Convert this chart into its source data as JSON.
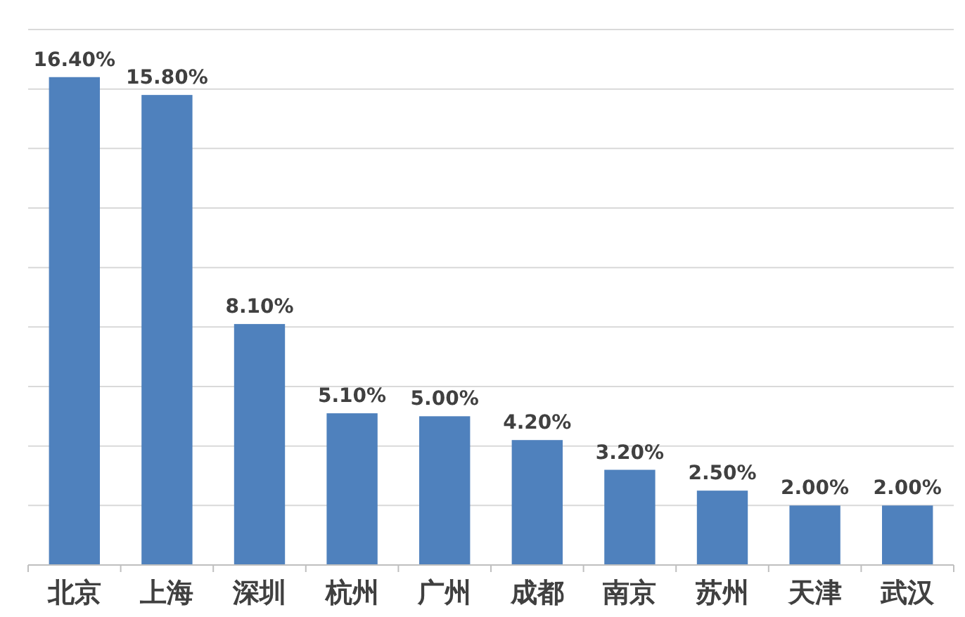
{
  "chart_data": {
    "type": "bar",
    "categories": [
      "北京",
      "上海",
      "深圳",
      "杭州",
      "广州",
      "成都",
      "南京",
      "苏州",
      "天津",
      "武汉"
    ],
    "values": [
      16.4,
      15.8,
      8.1,
      5.1,
      5.0,
      4.2,
      3.2,
      2.5,
      2.0,
      2.0
    ],
    "value_labels": [
      "16.40%",
      "15.80%",
      "8.10%",
      "5.10%",
      "5.00%",
      "4.20%",
      "3.20%",
      "2.50%",
      "2.00%",
      "2.00%"
    ],
    "color": "#4f81bd",
    "ylim": [
      0,
      18
    ],
    "yticks": [
      {
        "value": 0,
        "label": null
      },
      {
        "value": 2,
        "label": null
      },
      {
        "value": 4,
        "label": null
      },
      {
        "value": 6,
        "label": null
      },
      {
        "value": 8,
        "label": null
      },
      {
        "value": 10,
        "label": null
      },
      {
        "value": 12,
        "label": null
      },
      {
        "value": 14,
        "label": null
      },
      {
        "value": 16,
        "label": null
      },
      {
        "value": 18,
        "label": null
      }
    ],
    "grid": "y",
    "tick_labels": "x"
  }
}
